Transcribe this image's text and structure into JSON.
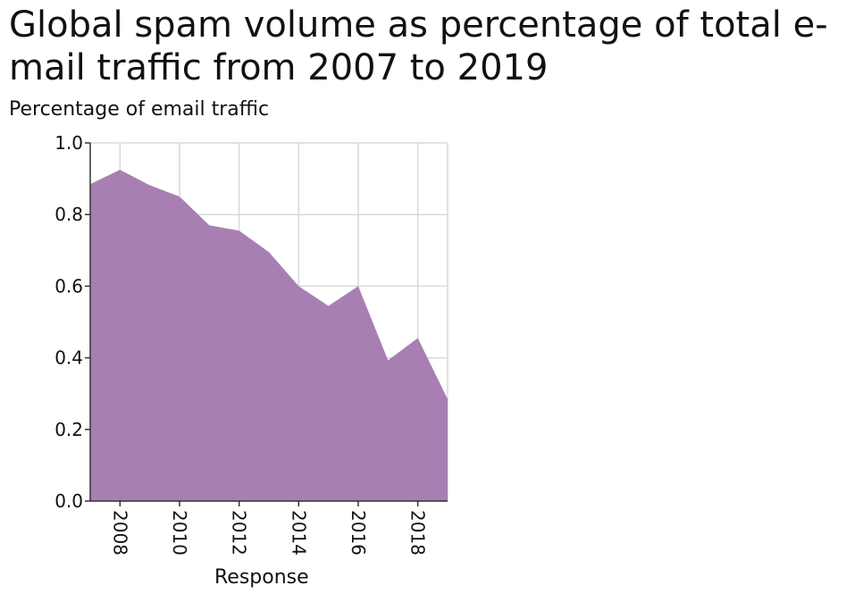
{
  "chart_data": {
    "type": "area",
    "title": "Global spam volume as percentage of total e-mail traffic from 2007 to 2019",
    "ylabel": "Percentage of email traffic",
    "xlabel": "Response",
    "x": [
      2007,
      2008,
      2009,
      2010,
      2011,
      2012,
      2013,
      2014,
      2015,
      2016,
      2017,
      2018,
      2019
    ],
    "values": [
      0.885,
      0.925,
      0.882,
      0.85,
      0.77,
      0.755,
      0.695,
      0.6,
      0.545,
      0.6,
      0.393,
      0.455,
      0.285
    ],
    "xlim": [
      2007,
      2019
    ],
    "ylim": [
      0,
      1.0
    ],
    "xticks": [
      "2008",
      "2010",
      "2012",
      "2014",
      "2016",
      "2018"
    ],
    "yticks": [
      "0.0",
      "0.2",
      "0.4",
      "0.6",
      "0.8",
      "1.0"
    ],
    "grid": true,
    "fill_color": "#a87fb2"
  }
}
